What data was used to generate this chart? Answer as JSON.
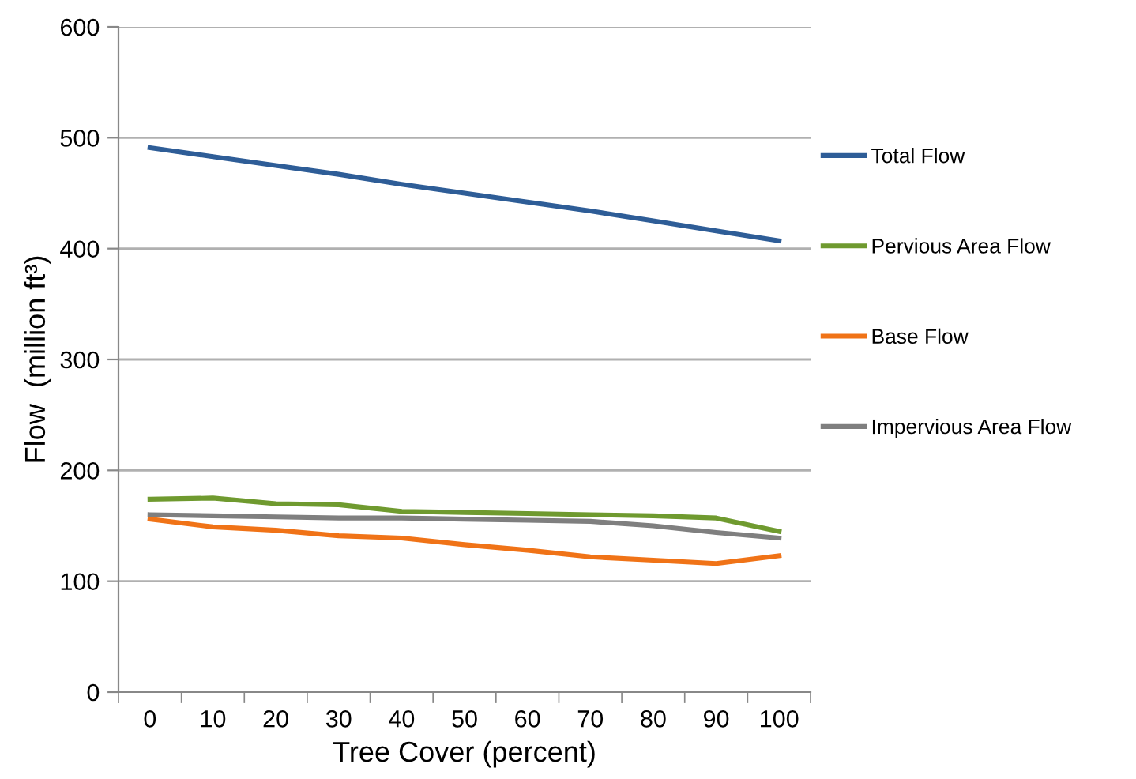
{
  "chart_data": {
    "type": "line",
    "xlabel": "Tree Cover (percent)",
    "ylabel": "Flow  (million ft³)",
    "categories": [
      "0",
      "10",
      "20",
      "30",
      "40",
      "50",
      "60",
      "70",
      "80",
      "90",
      "100"
    ],
    "series": [
      {
        "name": "Total Flow",
        "color": "#2e5d97",
        "values": [
          491,
          483,
          475,
          467,
          458,
          450,
          442,
          434,
          425,
          416,
          407
        ]
      },
      {
        "name": "Pervious Area Flow",
        "color": "#6f9a2f",
        "values": [
          174,
          175,
          170,
          169,
          163,
          162,
          161,
          160,
          159,
          157,
          145
        ]
      },
      {
        "name": "Base Flow",
        "color": "#f07317",
        "values": [
          156,
          149,
          146,
          141,
          139,
          133,
          128,
          122,
          119,
          116,
          123
        ]
      },
      {
        "name": "Impervious Area Flow",
        "color": "#7f7f7f",
        "values": [
          160,
          159,
          158,
          157,
          157,
          156,
          155,
          154,
          150,
          144,
          139
        ]
      }
    ],
    "ylim": [
      0,
      600
    ],
    "yticks": [
      0,
      100,
      200,
      300,
      400,
      500,
      600
    ],
    "grid": "y",
    "legend": "right",
    "marker": "none",
    "line_style": "solid"
  }
}
